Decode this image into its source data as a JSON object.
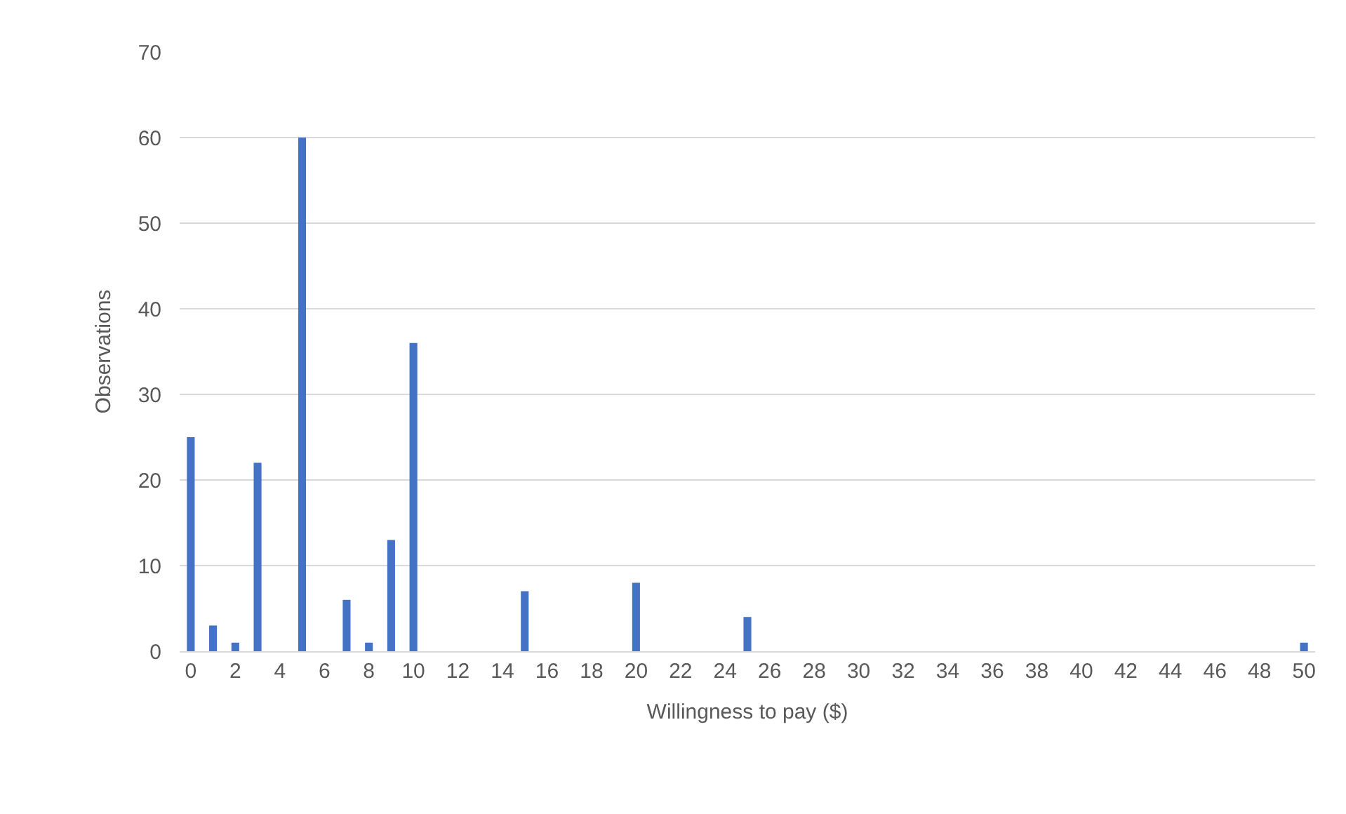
{
  "chart_data": {
    "type": "bar",
    "xlabel": "Willingness to pay ($)",
    "ylabel": "Observations",
    "x": [
      0,
      1,
      2,
      3,
      5,
      7,
      8,
      9,
      10,
      15,
      20,
      25,
      50
    ],
    "values": [
      25,
      3,
      1,
      22,
      60,
      6,
      1,
      13,
      36,
      7,
      8,
      4,
      1
    ],
    "color": "#4472c4",
    "xlim": [
      -0.5,
      50.5
    ],
    "xticks": [
      0,
      2,
      4,
      6,
      8,
      10,
      12,
      14,
      16,
      18,
      20,
      22,
      24,
      26,
      28,
      30,
      32,
      34,
      36,
      38,
      40,
      42,
      44,
      46,
      48,
      50
    ],
    "ylim": [
      0,
      70
    ],
    "yticks": [
      0,
      10,
      20,
      30,
      40,
      50,
      60,
      70
    ],
    "grid": "y",
    "legend": false
  }
}
